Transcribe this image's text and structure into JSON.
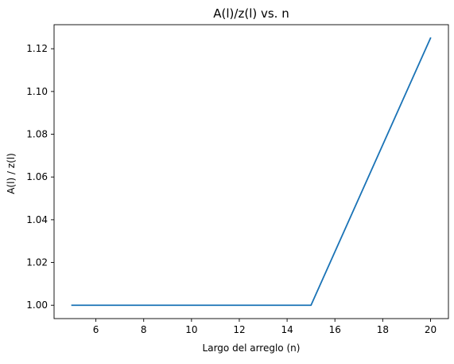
{
  "chart_data": {
    "type": "line",
    "title": "A(l)/z(l) vs. n",
    "xlabel": "Largo del arreglo (n)",
    "ylabel": "A(l) / z(l)",
    "xlim": [
      4.25,
      20.75
    ],
    "ylim": [
      0.99375,
      1.13125
    ],
    "xticks": [
      6,
      8,
      10,
      12,
      14,
      16,
      18,
      20
    ],
    "yticks": [
      1.0,
      1.02,
      1.04,
      1.06,
      1.08,
      1.1,
      1.12
    ],
    "grid": false,
    "x": [
      5,
      15,
      20
    ],
    "series": [
      {
        "values": [
          1.0,
          1.0,
          1.125
        ],
        "color": "#1a73b6"
      }
    ]
  }
}
